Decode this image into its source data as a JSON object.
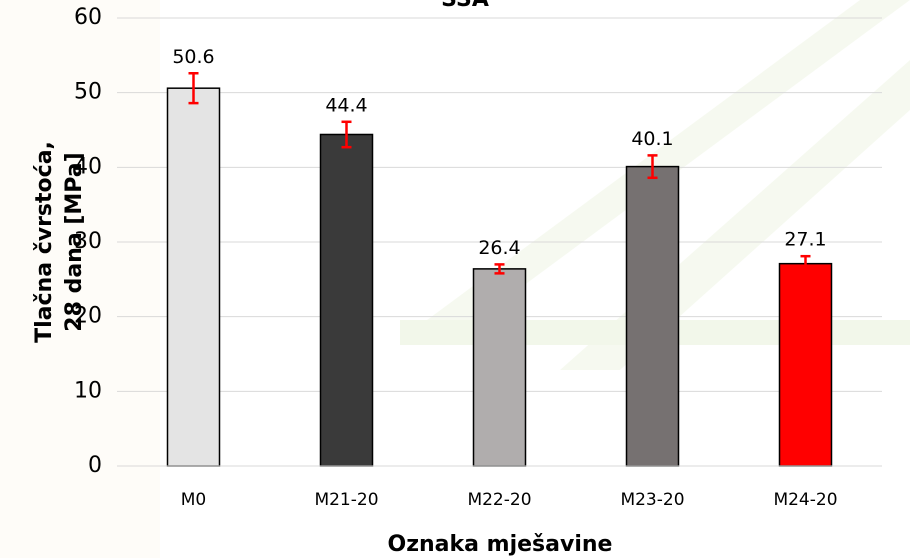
{
  "chart_data": {
    "type": "bar",
    "title": "SSA",
    "xlabel": "Oznaka mješavine",
    "ylabel": [
      "Tlačna čvrstoća,",
      "28 dana [MPa]"
    ],
    "categories": [
      "M0",
      "M21-20",
      "M22-20",
      "M23-20",
      "M24-20"
    ],
    "values": [
      50.6,
      44.4,
      26.4,
      40.1,
      27.1
    ],
    "errors": [
      2.0,
      1.7,
      0.6,
      1.5,
      1.0
    ],
    "colors": [
      "#e4e4e4",
      "#3a3a3a",
      "#b0adad",
      "#767171",
      "#ff0000"
    ],
    "error_color": "#ff0000",
    "ylim": [
      0,
      60
    ],
    "yticks": [
      0,
      10,
      20,
      30,
      40,
      50,
      60
    ],
    "grid": true
  }
}
